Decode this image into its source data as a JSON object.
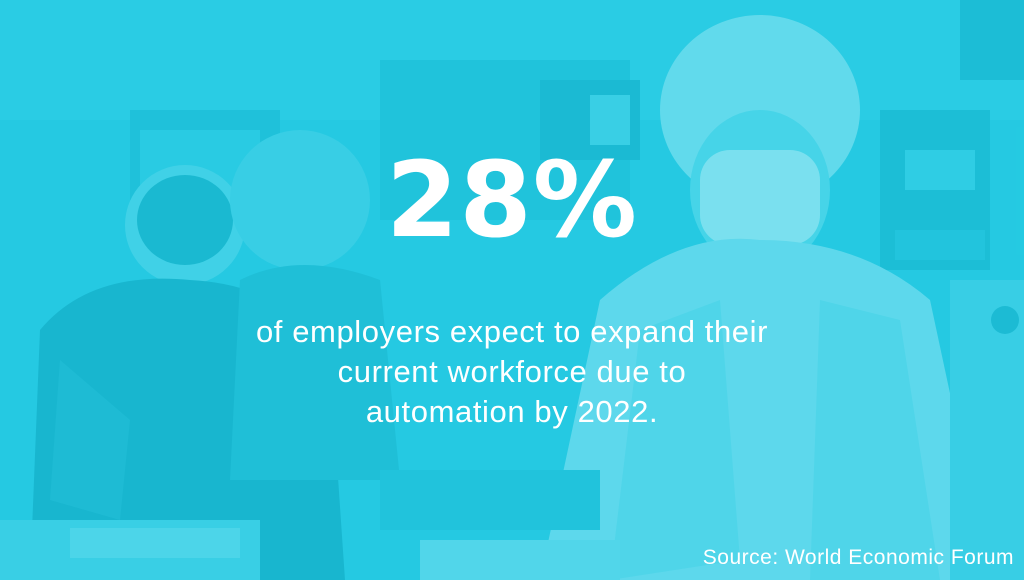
{
  "colors": {
    "background": "#25c9e1",
    "text": "#ffffff"
  },
  "stat": {
    "value": "28%",
    "lines": [
      "of employers expect to expand their",
      "current workforce due to",
      "automation by 2022."
    ]
  },
  "source": "Source: World Economic Forum"
}
